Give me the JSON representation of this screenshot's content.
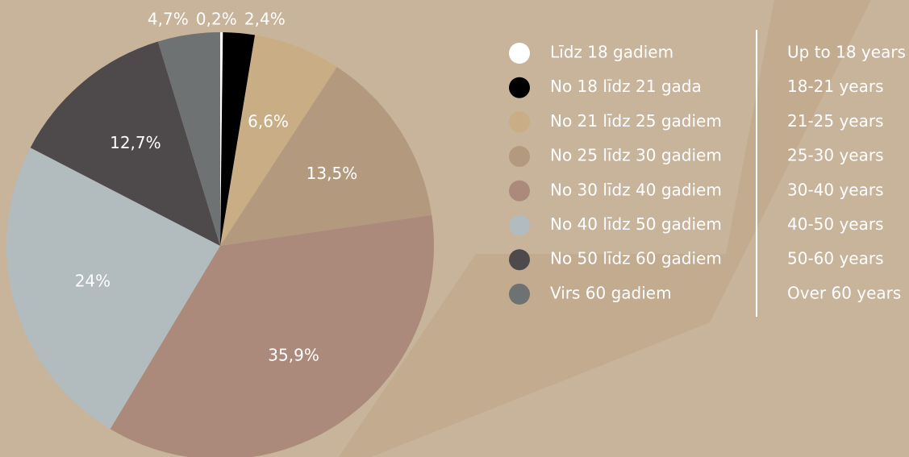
{
  "chart_data": {
    "type": "pie",
    "categories": [
      "Līdz 18 gadiem",
      "No 18 līdz 21 gada",
      "No 21 līdz 25 gadiem",
      "No 25 līdz 30 gadiem",
      "No 30 līdz 40 gadiem",
      "No 40 līdz 50 gadiem",
      "No 50 līdz 60 gadiem",
      "Virs 60 gadiem"
    ],
    "categories_en": [
      "Up to 18 years",
      "18-21 years",
      "21-25 years",
      "25-30 years",
      "30-40 years",
      "40-50 years",
      "50-60 years",
      "Over 60 years"
    ],
    "values": [
      0.2,
      2.4,
      6.6,
      13.5,
      35.9,
      24,
      12.7,
      4.7
    ],
    "value_labels": [
      "0,2%",
      "2,4%",
      "6,6%",
      "13,5%",
      "35,9%",
      "24%",
      "12,7%",
      "4,7%"
    ],
    "colors": [
      "#ffffff",
      "#000000",
      "#c9ad84",
      "#b39a7f",
      "#ab8a7c",
      "#b2bbbd",
      "#4e4a4c",
      "#6e7273"
    ]
  }
}
